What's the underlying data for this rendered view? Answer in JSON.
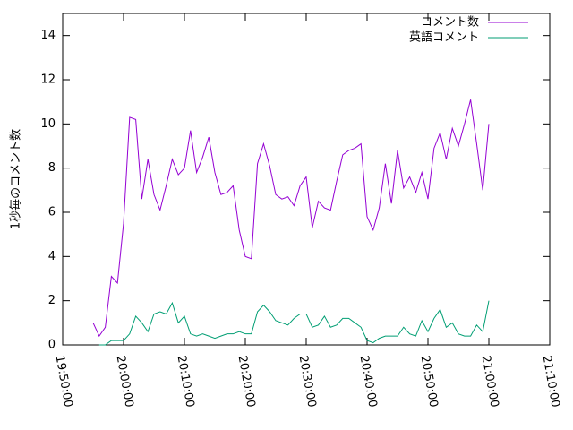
{
  "chart_data": {
    "type": "line",
    "y_label": "1秒毎のコメント数",
    "x": [
      "19:55:00",
      "19:56:00",
      "19:57:00",
      "19:58:00",
      "19:59:00",
      "20:00:00",
      "20:01:00",
      "20:02:00",
      "20:03:00",
      "20:04:00",
      "20:05:00",
      "20:06:00",
      "20:07:00",
      "20:08:00",
      "20:09:00",
      "20:10:00",
      "20:11:00",
      "20:12:00",
      "20:13:00",
      "20:14:00",
      "20:15:00",
      "20:16:00",
      "20:17:00",
      "20:18:00",
      "20:19:00",
      "20:20:00",
      "20:21:00",
      "20:22:00",
      "20:23:00",
      "20:24:00",
      "20:25:00",
      "20:26:00",
      "20:27:00",
      "20:28:00",
      "20:29:00",
      "20:30:00",
      "20:31:00",
      "20:32:00",
      "20:33:00",
      "20:34:00",
      "20:35:00",
      "20:36:00",
      "20:37:00",
      "20:38:00",
      "20:39:00",
      "20:40:00",
      "20:41:00",
      "20:42:00",
      "20:43:00",
      "20:44:00",
      "20:45:00",
      "20:46:00",
      "20:47:00",
      "20:48:00",
      "20:49:00",
      "20:50:00",
      "20:51:00",
      "20:52:00",
      "20:53:00",
      "20:54:00",
      "20:55:00",
      "20:56:00",
      "20:57:00",
      "20:58:00",
      "20:59:00",
      "21:00:00"
    ],
    "series": [
      {
        "name": "コメント数",
        "color": "#9400d3",
        "values": [
          1.0,
          0.4,
          0.8,
          3.1,
          2.8,
          5.5,
          10.3,
          10.2,
          6.6,
          8.4,
          6.8,
          6.1,
          7.2,
          8.4,
          7.7,
          8.0,
          9.7,
          7.8,
          8.5,
          9.4,
          7.8,
          6.8,
          6.9,
          7.2,
          5.2,
          4.0,
          3.9,
          8.2,
          9.1,
          8.1,
          6.8,
          6.6,
          6.7,
          6.3,
          7.2,
          7.6,
          5.3,
          6.5,
          6.2,
          6.1,
          7.4,
          8.6,
          8.8,
          8.9,
          9.1,
          5.8,
          5.2,
          6.2,
          8.2,
          6.4,
          8.8,
          7.1,
          7.6,
          6.9,
          7.8,
          6.6,
          8.9,
          9.6,
          8.4,
          9.8,
          9.0,
          10.0,
          11.1,
          9.1,
          7.0,
          10.0
        ]
      },
      {
        "name": "英語コメント",
        "color": "#009e73",
        "values": [
          null,
          0,
          0,
          0.2,
          0.2,
          0.2,
          0.5,
          1.3,
          1.0,
          0.6,
          1.4,
          1.5,
          1.4,
          1.9,
          1.0,
          1.3,
          0.5,
          0.4,
          0.5,
          0.4,
          0.3,
          0.4,
          0.5,
          0.5,
          0.6,
          0.5,
          0.5,
          1.5,
          1.8,
          1.5,
          1.1,
          1.0,
          0.9,
          1.2,
          1.4,
          1.4,
          0.8,
          0.9,
          1.3,
          0.8,
          0.9,
          1.2,
          1.2,
          1.0,
          0.8,
          0.2,
          0.1,
          0.3,
          0.4,
          0.4,
          0.4,
          0.8,
          0.5,
          0.4,
          1.1,
          0.6,
          1.2,
          1.6,
          0.8,
          1.0,
          0.5,
          0.4,
          0.4,
          0.9,
          0.6,
          2.0
        ]
      }
    ],
    "xlim": [
      "19:50:00",
      "21:10:00"
    ],
    "xticks": [
      "19:50:00",
      "20:00:00",
      "20:10:00",
      "20:20:00",
      "20:30:00",
      "20:40:00",
      "20:50:00",
      "21:00:00",
      "21:10:00"
    ],
    "ylim": [
      0,
      15
    ],
    "yticks": [
      0,
      2,
      4,
      6,
      8,
      10,
      12,
      14
    ],
    "legend": "top-right"
  }
}
